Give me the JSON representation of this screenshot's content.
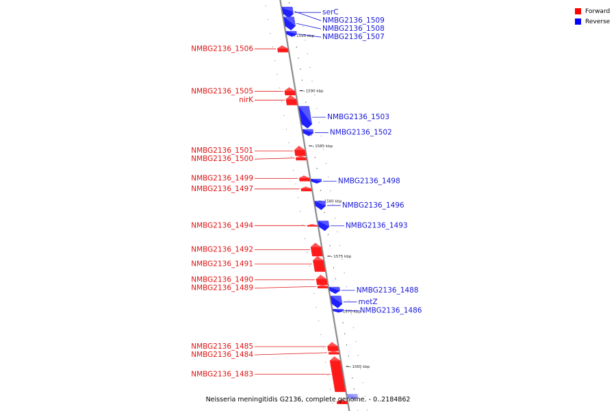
{
  "genome_caption": "Neisseria meningitidis G2136, complete genome. - 0..2184862",
  "legend": {
    "forward": {
      "label": "Forward",
      "color": "#ff0000"
    },
    "reverse": {
      "label": "Reverse",
      "color": "#0000ff"
    }
  },
  "colors": {
    "forward_fill": "#ff1a1a",
    "forward_label": "#e01010",
    "reverse_fill": "#1f1fff",
    "reverse_label": "#1515d8",
    "faded_reverse": "#8c8cff",
    "backbone": "#8a8a8a"
  },
  "scale": {
    "unit": "kbp",
    "ticks": [
      {
        "label": "1595 kbp",
        "kbp": 1595
      },
      {
        "label": "1590 kbp",
        "kbp": 1590
      },
      {
        "label": "1585 kbp",
        "kbp": 1585
      },
      {
        "label": "1580 kbp",
        "kbp": 1580
      },
      {
        "label": "1575 kbp",
        "kbp": 1575
      },
      {
        "label": "1570 kbp",
        "kbp": 1570
      },
      {
        "label": "1565 kbp",
        "kbp": 1565
      }
    ]
  },
  "features": [
    {
      "name": "serC",
      "strand": "reverse",
      "start_kbp": 1597.6,
      "end_kbp": 1596.6
    },
    {
      "name": "NMBG2136_1509",
      "strand": "reverse",
      "start_kbp": 1597.5,
      "end_kbp": 1596.9
    },
    {
      "name": "NMBG2136_1508",
      "strand": "reverse",
      "start_kbp": 1596.7,
      "end_kbp": 1595.5
    },
    {
      "name": "NMBG2136_1507",
      "strand": "reverse",
      "start_kbp": 1595.4,
      "end_kbp": 1594.9
    },
    {
      "name": "NMBG2136_1506",
      "strand": "forward",
      "start_kbp": 1593.5,
      "end_kbp": 1594.1
    },
    {
      "name": "NMBG2136_1505",
      "strand": "forward",
      "start_kbp": 1589.6,
      "end_kbp": 1590.3
    },
    {
      "name": "nirK",
      "strand": "forward",
      "start_kbp": 1588.7,
      "end_kbp": 1589.6
    },
    {
      "name": "NMBG2136_1503",
      "strand": "reverse",
      "start_kbp": 1588.6,
      "end_kbp": 1586.6
    },
    {
      "name": "NMBG2136_1502",
      "strand": "reverse",
      "start_kbp": 1586.5,
      "end_kbp": 1585.9
    },
    {
      "name": "NMBG2136_1501",
      "strand": "forward",
      "start_kbp": 1584.1,
      "end_kbp": 1585.0
    },
    {
      "name": "NMBG2136_1500",
      "strand": "forward",
      "start_kbp": 1583.7,
      "end_kbp": 1584.1
    },
    {
      "name": "NMBG2136_1499",
      "strand": "forward",
      "start_kbp": 1581.8,
      "end_kbp": 1582.3
    },
    {
      "name": "NMBG2136_1498",
      "strand": "reverse",
      "start_kbp": 1582.0,
      "end_kbp": 1581.6
    },
    {
      "name": "NMBG2136_1497",
      "strand": "forward",
      "start_kbp": 1580.9,
      "end_kbp": 1581.3
    },
    {
      "name": "NMBG2136_1496",
      "strand": "reverse",
      "start_kbp": 1580.0,
      "end_kbp": 1579.2
    },
    {
      "name": "NMBG2136_1494",
      "strand": "forward",
      "start_kbp": 1577.7,
      "end_kbp": 1577.9
    },
    {
      "name": "NMBG2136_1493",
      "strand": "reverse",
      "start_kbp": 1578.2,
      "end_kbp": 1577.3
    },
    {
      "name": "NMBG2136_1492",
      "strand": "forward",
      "start_kbp": 1575.0,
      "end_kbp": 1576.2
    },
    {
      "name": "NMBG2136_1491",
      "strand": "forward",
      "start_kbp": 1573.6,
      "end_kbp": 1575.0
    },
    {
      "name": "NMBG2136_1490",
      "strand": "forward",
      "start_kbp": 1572.4,
      "end_kbp": 1573.3
    },
    {
      "name": "NMBG2136_1489",
      "strand": "forward",
      "start_kbp": 1572.1,
      "end_kbp": 1572.4
    },
    {
      "name": "NMBG2136_1488",
      "strand": "reverse",
      "start_kbp": 1572.2,
      "end_kbp": 1571.6
    },
    {
      "name": "metZ",
      "strand": "reverse",
      "start_kbp": 1571.4,
      "end_kbp": 1570.3
    },
    {
      "name": "NMBG2136_1486",
      "strand": "reverse",
      "start_kbp": 1570.2,
      "end_kbp": 1569.9
    },
    {
      "name": "NMBG2136_1485",
      "strand": "forward",
      "start_kbp": 1566.4,
      "end_kbp": 1567.2
    },
    {
      "name": "NMBG2136_1484",
      "strand": "forward",
      "start_kbp": 1566.1,
      "end_kbp": 1566.4
    },
    {
      "name": "NMBG2136_1483",
      "strand": "forward",
      "start_kbp": 1562.7,
      "end_kbp": 1565.9
    },
    {
      "name": "",
      "strand": "reverse",
      "start_kbp": 1562.5,
      "end_kbp": 1562.0,
      "faded": true
    },
    {
      "name": "",
      "strand": "forward",
      "start_kbp": 1561.6,
      "end_kbp": 1562.0
    }
  ]
}
